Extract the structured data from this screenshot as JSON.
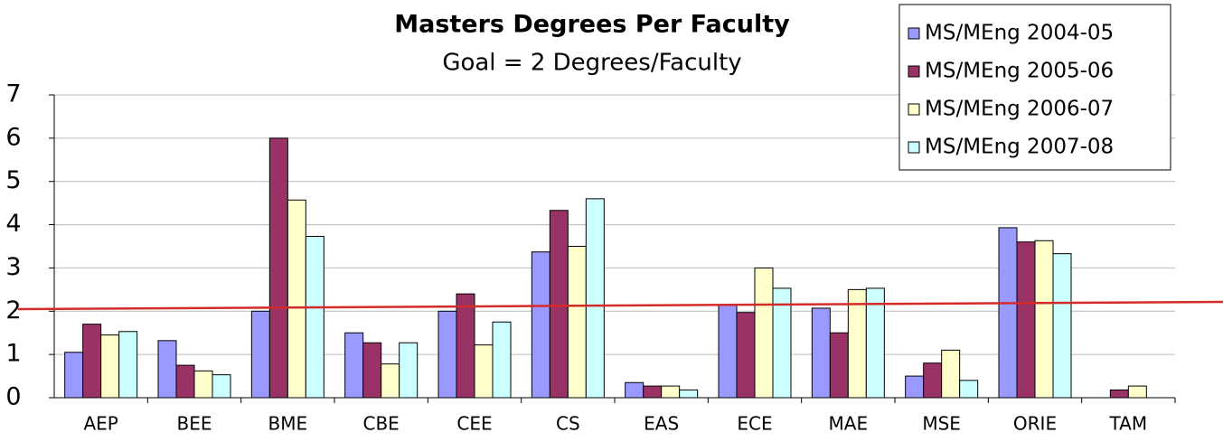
{
  "chart_data": {
    "type": "bar",
    "title": "Masters Degrees Per Faculty",
    "subtitle": "Goal = 2 Degrees/Faculty",
    "categories": [
      "AEP",
      "BEE",
      "BME",
      "CBE",
      "CEE",
      "CS",
      "EAS",
      "ECE",
      "MAE",
      "MSE",
      "ORIE",
      "TAM"
    ],
    "series": [
      {
        "name": "MS/MEng 2004-05",
        "color": "#9999ff",
        "values": [
          1.05,
          1.32,
          2.0,
          1.5,
          2.0,
          3.37,
          0.35,
          2.15,
          2.07,
          0.5,
          3.93,
          null
        ]
      },
      {
        "name": "MS/MEng 2005-06",
        "color": "#993366",
        "values": [
          1.7,
          0.75,
          6.0,
          1.27,
          2.4,
          4.33,
          0.27,
          1.97,
          1.5,
          0.8,
          3.6,
          0.18
        ]
      },
      {
        "name": "MS/MEng 2006-07",
        "color": "#ffffcc",
        "values": [
          1.45,
          0.62,
          4.57,
          0.78,
          1.22,
          3.5,
          0.27,
          3.0,
          2.5,
          1.1,
          3.63,
          0.27
        ]
      },
      {
        "name": "MS/MEng 2007-08",
        "color": "#ccffff",
        "values": [
          1.53,
          0.53,
          3.73,
          1.27,
          1.75,
          4.6,
          0.18,
          2.53,
          2.53,
          0.4,
          3.33,
          null
        ]
      }
    ],
    "ylim": [
      0,
      7
    ],
    "yticks": [
      0,
      1,
      2,
      3,
      4,
      5,
      6,
      7
    ],
    "grid": true,
    "legend": "top-right"
  }
}
